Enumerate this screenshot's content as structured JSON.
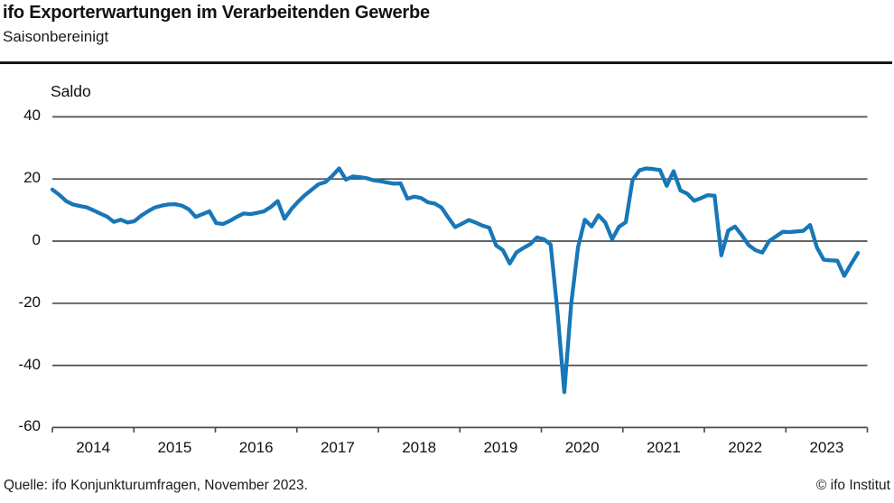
{
  "header": {
    "title": "ifo Exporterwartungen im Verarbeitenden Gewerbe",
    "subtitle": "Saisonbereinigt"
  },
  "footer": {
    "source": "Quelle: ifo Konjunkturumfragen, November 2023.",
    "copyright": "© ifo Institut"
  },
  "chart_data": {
    "type": "line",
    "title": "ifo Exporterwartungen im Verarbeitenden Gewerbe",
    "subtitle": "Saisonbereinigt",
    "ylabel": "Saldo",
    "xlabel": "",
    "ylim": [
      -60,
      45
    ],
    "y_ticks": [
      40,
      20,
      0,
      -20,
      -40,
      -60
    ],
    "x_tick_labels": [
      "2014",
      "2015",
      "2016",
      "2017",
      "2018",
      "2019",
      "2020",
      "2021",
      "2022",
      "2023"
    ],
    "grid": "horizontal-only",
    "legend": "none",
    "frequency": "monthly",
    "x_start": "2014-01",
    "x_end": "2023-11",
    "line_color": "#1777b8",
    "grid_color": "#4d4d4d",
    "series": [
      {
        "name": "Exporterwartungen, saisonbereinigt (Saldo)",
        "values": [
          16.6,
          14.9,
          12.9,
          11.8,
          11.3,
          10.9,
          9.9,
          8.9,
          7.9,
          6.2,
          6.9,
          6.0,
          6.4,
          8.2,
          9.6,
          10.8,
          11.4,
          11.8,
          11.9,
          11.4,
          10.2,
          7.8,
          8.7,
          9.6,
          5.8,
          5.5,
          6.5,
          7.8,
          8.9,
          8.7,
          9.1,
          9.6,
          11.0,
          12.9,
          7.2,
          10.3,
          12.7,
          14.8,
          16.6,
          18.3,
          19.0,
          21.0,
          23.4,
          19.8,
          20.8,
          20.6,
          20.3,
          19.6,
          19.3,
          18.9,
          18.5,
          18.6,
          13.7,
          14.3,
          13.9,
          12.5,
          12.1,
          10.8,
          7.6,
          4.5,
          5.6,
          6.8,
          6.0,
          5.0,
          4.3,
          -1.4,
          -2.9,
          -7.2,
          -3.6,
          -2.2,
          -1.0,
          1.2,
          0.6,
          -1.1,
          -23.0,
          -48.6,
          -20.3,
          -2.0,
          6.9,
          4.7,
          8.3,
          6.0,
          0.6,
          4.6,
          6.1,
          19.7,
          22.8,
          23.4,
          23.2,
          22.9,
          17.8,
          22.5,
          16.3,
          15.3,
          13.0,
          13.8,
          14.8,
          14.6,
          -4.6,
          3.4,
          4.7,
          1.9,
          -1.3,
          -2.9,
          -3.7,
          0.0,
          1.5,
          3.0,
          2.9,
          3.1,
          3.3,
          5.2,
          -2.0,
          -6.0,
          -6.2,
          -6.3,
          -11.2,
          -7.4,
          -3.8
        ]
      }
    ]
  }
}
